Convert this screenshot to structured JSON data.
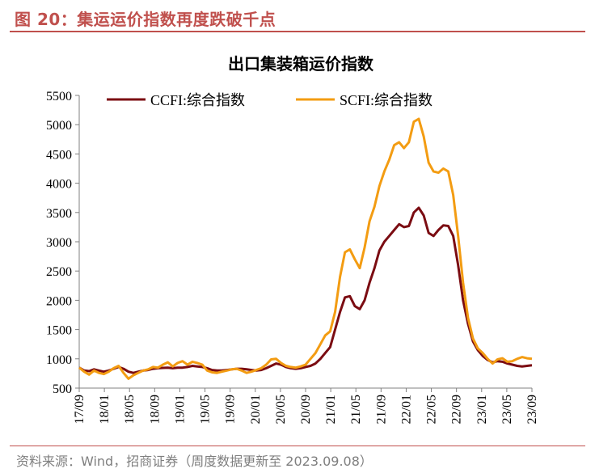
{
  "figure": {
    "title": "图 20：集运运价指数再度跌破千点",
    "source": "资料来源：Wind，招商证券（周度数据更新至 2023.09.08）"
  },
  "colors": {
    "ccfi": "#7b0c12",
    "scfi": "#f39c12",
    "accent": "#c0504d",
    "axis": "#808080"
  },
  "chart_data": {
    "type": "line",
    "title": "出口集装箱运价指数",
    "xlabel": "",
    "ylabel": "",
    "ylim": [
      500,
      5500
    ],
    "yticks": [
      500,
      1000,
      1500,
      2000,
      2500,
      3000,
      3500,
      4000,
      4500,
      5000,
      5500
    ],
    "xtick_labels": [
      "17/09",
      "18/01",
      "18/05",
      "18/09",
      "19/01",
      "19/05",
      "19/09",
      "20/01",
      "20/05",
      "20/09",
      "21/01",
      "21/05",
      "21/09",
      "22/01",
      "22/05",
      "22/09",
      "23/01",
      "23/05",
      "23/09"
    ],
    "grid": false,
    "legend_position": "top",
    "series": [
      {
        "name": "CCFI:综合指数",
        "color": "ccfi",
        "points": [
          [
            0,
            850
          ],
          [
            1,
            800
          ],
          [
            2,
            790
          ],
          [
            3,
            820
          ],
          [
            4,
            800
          ],
          [
            5,
            780
          ],
          [
            6,
            800
          ],
          [
            7,
            830
          ],
          [
            8,
            860
          ],
          [
            9,
            830
          ],
          [
            10,
            780
          ],
          [
            11,
            760
          ],
          [
            12,
            780
          ],
          [
            13,
            800
          ],
          [
            14,
            810
          ],
          [
            15,
            830
          ],
          [
            16,
            840
          ],
          [
            17,
            845
          ],
          [
            18,
            850
          ],
          [
            19,
            840
          ],
          [
            20,
            850
          ],
          [
            21,
            850
          ],
          [
            22,
            860
          ],
          [
            23,
            880
          ],
          [
            24,
            870
          ],
          [
            25,
            860
          ],
          [
            26,
            840
          ],
          [
            27,
            810
          ],
          [
            28,
            800
          ],
          [
            29,
            800
          ],
          [
            30,
            810
          ],
          [
            31,
            820
          ],
          [
            32,
            830
          ],
          [
            33,
            830
          ],
          [
            34,
            820
          ],
          [
            35,
            810
          ],
          [
            36,
            800
          ],
          [
            37,
            810
          ],
          [
            38,
            840
          ],
          [
            39,
            880
          ],
          [
            40,
            920
          ],
          [
            41,
            900
          ],
          [
            42,
            860
          ],
          [
            43,
            840
          ],
          [
            44,
            830
          ],
          [
            45,
            840
          ],
          [
            46,
            860
          ],
          [
            47,
            880
          ],
          [
            48,
            920
          ],
          [
            49,
            1000
          ],
          [
            50,
            1100
          ],
          [
            51,
            1200
          ],
          [
            52,
            1500
          ],
          [
            53,
            1800
          ],
          [
            54,
            2050
          ],
          [
            55,
            2070
          ],
          [
            56,
            1900
          ],
          [
            57,
            1850
          ],
          [
            58,
            2000
          ],
          [
            59,
            2300
          ],
          [
            60,
            2550
          ],
          [
            61,
            2850
          ],
          [
            62,
            3000
          ],
          [
            63,
            3100
          ],
          [
            64,
            3200
          ],
          [
            65,
            3300
          ],
          [
            66,
            3250
          ],
          [
            67,
            3270
          ],
          [
            68,
            3500
          ],
          [
            69,
            3580
          ],
          [
            70,
            3450
          ],
          [
            71,
            3150
          ],
          [
            72,
            3100
          ],
          [
            73,
            3200
          ],
          [
            74,
            3280
          ],
          [
            75,
            3270
          ],
          [
            76,
            3100
          ],
          [
            77,
            2600
          ],
          [
            78,
            2000
          ],
          [
            79,
            1600
          ],
          [
            80,
            1300
          ],
          [
            81,
            1150
          ],
          [
            82,
            1050
          ],
          [
            83,
            980
          ],
          [
            84,
            940
          ],
          [
            85,
            960
          ],
          [
            86,
            950
          ],
          [
            87,
            920
          ],
          [
            88,
            900
          ],
          [
            89,
            880
          ],
          [
            90,
            870
          ],
          [
            91,
            880
          ],
          [
            92,
            890
          ]
        ]
      },
      {
        "name": "SCFI:综合指数",
        "color": "scfi",
        "points": [
          [
            0,
            850
          ],
          [
            1,
            780
          ],
          [
            2,
            730
          ],
          [
            3,
            800
          ],
          [
            4,
            760
          ],
          [
            5,
            740
          ],
          [
            6,
            780
          ],
          [
            7,
            840
          ],
          [
            8,
            880
          ],
          [
            9,
            760
          ],
          [
            10,
            660
          ],
          [
            11,
            720
          ],
          [
            12,
            760
          ],
          [
            13,
            800
          ],
          [
            14,
            820
          ],
          [
            15,
            860
          ],
          [
            16,
            850
          ],
          [
            17,
            900
          ],
          [
            18,
            940
          ],
          [
            19,
            870
          ],
          [
            20,
            930
          ],
          [
            21,
            960
          ],
          [
            22,
            900
          ],
          [
            23,
            950
          ],
          [
            24,
            930
          ],
          [
            25,
            900
          ],
          [
            26,
            800
          ],
          [
            27,
            770
          ],
          [
            28,
            760
          ],
          [
            29,
            780
          ],
          [
            30,
            800
          ],
          [
            31,
            820
          ],
          [
            32,
            830
          ],
          [
            33,
            800
          ],
          [
            34,
            760
          ],
          [
            35,
            780
          ],
          [
            36,
            810
          ],
          [
            37,
            840
          ],
          [
            38,
            900
          ],
          [
            39,
            990
          ],
          [
            40,
            1000
          ],
          [
            41,
            930
          ],
          [
            42,
            880
          ],
          [
            43,
            860
          ],
          [
            44,
            850
          ],
          [
            45,
            870
          ],
          [
            46,
            900
          ],
          [
            47,
            1000
          ],
          [
            48,
            1100
          ],
          [
            49,
            1250
          ],
          [
            50,
            1400
          ],
          [
            51,
            1470
          ],
          [
            52,
            1800
          ],
          [
            53,
            2400
          ],
          [
            54,
            2820
          ],
          [
            55,
            2870
          ],
          [
            56,
            2700
          ],
          [
            57,
            2550
          ],
          [
            58,
            2900
          ],
          [
            59,
            3350
          ],
          [
            60,
            3600
          ],
          [
            61,
            3950
          ],
          [
            62,
            4200
          ],
          [
            63,
            4400
          ],
          [
            64,
            4650
          ],
          [
            65,
            4700
          ],
          [
            66,
            4600
          ],
          [
            67,
            4700
          ],
          [
            68,
            5050
          ],
          [
            69,
            5100
          ],
          [
            70,
            4800
          ],
          [
            71,
            4350
          ],
          [
            72,
            4200
          ],
          [
            73,
            4180
          ],
          [
            74,
            4250
          ],
          [
            75,
            4200
          ],
          [
            76,
            3800
          ],
          [
            77,
            3100
          ],
          [
            78,
            2300
          ],
          [
            79,
            1700
          ],
          [
            80,
            1350
          ],
          [
            81,
            1180
          ],
          [
            82,
            1100
          ],
          [
            83,
            1000
          ],
          [
            84,
            920
          ],
          [
            85,
            990
          ],
          [
            86,
            1010
          ],
          [
            87,
            950
          ],
          [
            88,
            960
          ],
          [
            89,
            1000
          ],
          [
            90,
            1030
          ],
          [
            91,
            1010
          ],
          [
            92,
            1000
          ]
        ]
      }
    ]
  }
}
